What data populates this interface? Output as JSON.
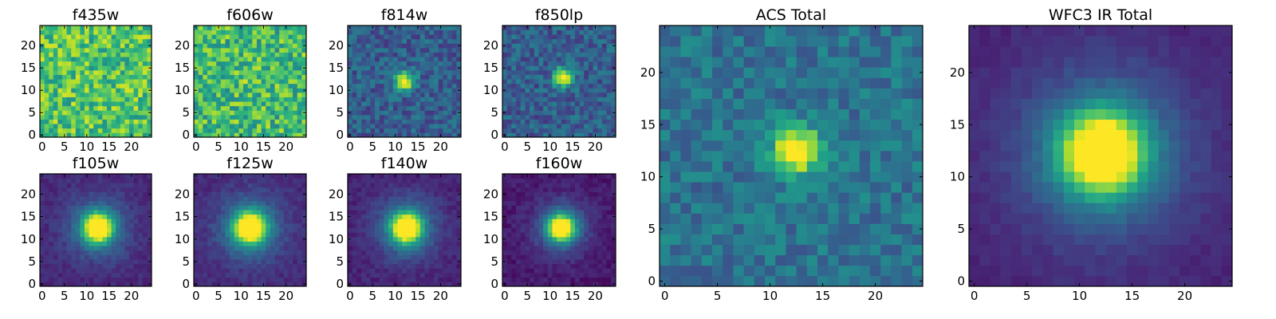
{
  "chart_data": [
    {
      "type": "heatmap",
      "title": "f435w",
      "grid": false,
      "xlim": [
        -0.5,
        24.5
      ],
      "ylim": [
        -0.5,
        24.5
      ],
      "xticks": [
        0,
        5,
        10,
        15,
        20
      ],
      "yticks": [
        0,
        5,
        10,
        15,
        20
      ],
      "colormap": "viridis",
      "source": {
        "kind": "noise",
        "base": 0.72,
        "noise": 0.22,
        "peak": 0.0,
        "sigma": 2.0,
        "cx": 12,
        "cy": 12,
        "seed": 11
      }
    },
    {
      "type": "heatmap",
      "title": "f606w",
      "grid": false,
      "xlim": [
        -0.5,
        24.5
      ],
      "ylim": [
        -0.5,
        24.5
      ],
      "xticks": [
        0,
        5,
        10,
        15,
        20
      ],
      "yticks": [
        0,
        5,
        10,
        15,
        20
      ],
      "colormap": "viridis",
      "source": {
        "kind": "noise",
        "base": 0.68,
        "noise": 0.22,
        "peak": 0.08,
        "sigma": 2.0,
        "cx": 12,
        "cy": 13,
        "seed": 23
      }
    },
    {
      "type": "heatmap",
      "title": "f814w",
      "grid": false,
      "xlim": [
        -0.5,
        24.5
      ],
      "ylim": [
        -0.5,
        24.5
      ],
      "xticks": [
        0,
        5,
        10,
        15,
        20
      ],
      "yticks": [
        0,
        5,
        10,
        15,
        20
      ],
      "colormap": "viridis",
      "source": {
        "kind": "noise",
        "base": 0.3,
        "noise": 0.14,
        "peak": 0.75,
        "sigma": 1.5,
        "cx": 12,
        "cy": 12,
        "seed": 37
      }
    },
    {
      "type": "heatmap",
      "title": "f850lp",
      "grid": false,
      "xlim": [
        -0.5,
        24.5
      ],
      "ylim": [
        -0.5,
        24.5
      ],
      "xticks": [
        0,
        5,
        10,
        15,
        20
      ],
      "yticks": [
        0,
        5,
        10,
        15,
        20
      ],
      "colormap": "viridis",
      "source": {
        "kind": "noise",
        "base": 0.3,
        "noise": 0.14,
        "peak": 0.75,
        "sigma": 1.5,
        "cx": 13,
        "cy": 13,
        "seed": 41
      }
    },
    {
      "type": "heatmap",
      "title": "f105w",
      "grid": false,
      "xlim": [
        -0.5,
        24.5
      ],
      "ylim": [
        -0.5,
        24.5
      ],
      "xticks": [
        0,
        5,
        10,
        15,
        20
      ],
      "yticks": [
        0,
        5,
        10,
        15,
        20
      ],
      "colormap": "viridis",
      "source": {
        "kind": "psf",
        "base": 0.12,
        "noise": 0.05,
        "peak": 1.0,
        "sigma": 2.1,
        "cx": 12.5,
        "cy": 12.5,
        "seed": 53
      }
    },
    {
      "type": "heatmap",
      "title": "f125w",
      "grid": false,
      "xlim": [
        -0.5,
        24.5
      ],
      "ylim": [
        -0.5,
        24.5
      ],
      "xticks": [
        0,
        5,
        10,
        15,
        20
      ],
      "yticks": [
        0,
        5,
        10,
        15,
        20
      ],
      "colormap": "viridis",
      "source": {
        "kind": "psf",
        "base": 0.12,
        "noise": 0.05,
        "peak": 1.0,
        "sigma": 2.3,
        "cx": 12,
        "cy": 12.5,
        "seed": 61
      }
    },
    {
      "type": "heatmap",
      "title": "f140w",
      "grid": false,
      "xlim": [
        -0.5,
        24.5
      ],
      "ylim": [
        -0.5,
        24.5
      ],
      "xticks": [
        0,
        5,
        10,
        15,
        20
      ],
      "yticks": [
        0,
        5,
        10,
        15,
        20
      ],
      "colormap": "viridis",
      "source": {
        "kind": "psf",
        "base": 0.1,
        "noise": 0.05,
        "peak": 1.0,
        "sigma": 2.2,
        "cx": 12.5,
        "cy": 12.5,
        "seed": 71
      }
    },
    {
      "type": "heatmap",
      "title": "f160w",
      "grid": false,
      "xlim": [
        -0.5,
        24.5
      ],
      "ylim": [
        -0.5,
        24.5
      ],
      "xticks": [
        0,
        5,
        10,
        15,
        20
      ],
      "yticks": [
        0,
        5,
        10,
        15,
        20
      ],
      "colormap": "viridis",
      "source": {
        "kind": "psf",
        "base": 0.07,
        "noise": 0.05,
        "peak": 1.0,
        "sigma": 1.9,
        "cx": 12.5,
        "cy": 12.5,
        "seed": 83
      }
    },
    {
      "type": "heatmap",
      "title": "ACS Total",
      "grid": false,
      "xlim": [
        -0.5,
        24.5
      ],
      "ylim": [
        -0.5,
        24.5
      ],
      "xticks": [
        0,
        5,
        10,
        15,
        20
      ],
      "yticks": [
        0,
        5,
        10,
        15,
        20
      ],
      "colormap": "viridis",
      "source": {
        "kind": "noise",
        "base": 0.38,
        "noise": 0.12,
        "peak": 0.75,
        "sigma": 1.6,
        "cx": 12.5,
        "cy": 12.5,
        "seed": 97
      }
    },
    {
      "type": "heatmap",
      "title": "WFC3 IR Total",
      "grid": false,
      "xlim": [
        -0.5,
        24.5
      ],
      "ylim": [
        -0.5,
        24.5
      ],
      "xticks": [
        0,
        5,
        10,
        15,
        20
      ],
      "yticks": [
        0,
        5,
        10,
        15,
        20
      ],
      "colormap": "viridis",
      "source": {
        "kind": "psf",
        "base": 0.1,
        "noise": 0.03,
        "peak": 1.0,
        "sigma": 2.6,
        "cx": 12.2,
        "cy": 12.3,
        "seed": 109
      }
    }
  ]
}
